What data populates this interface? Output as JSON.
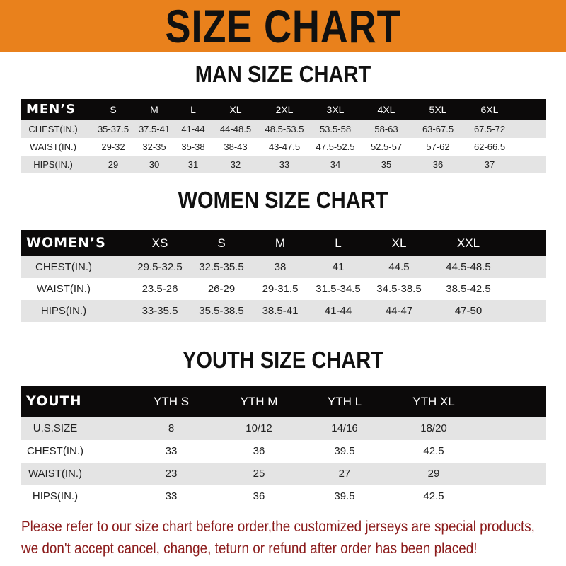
{
  "header": {
    "title": "SIZE CHART",
    "band_color": "#e9811c"
  },
  "men": {
    "title": "MAN SIZE CHART",
    "header_label": "MEN’S",
    "sizes": [
      "S",
      "M",
      "L",
      "XL",
      "2XL",
      "3XL",
      "4XL",
      "5XL",
      "6XL"
    ],
    "rows": [
      {
        "label": "CHEST(IN.)",
        "values": [
          "35-37.5",
          "37.5-41",
          "41-44",
          "44-48.5",
          "48.5-53.5",
          "53.5-58",
          "58-63",
          "63-67.5",
          "67.5-72"
        ]
      },
      {
        "label": "WAIST(IN.)",
        "values": [
          "29-32",
          "32-35",
          "35-38",
          "38-43",
          "43-47.5",
          "47.5-52.5",
          "52.5-57",
          "57-62",
          "62-66.5"
        ]
      },
      {
        "label": "HIPS(IN.)",
        "values": [
          "29",
          "30",
          "31",
          "32",
          "33",
          "34",
          "35",
          "36",
          "37"
        ]
      }
    ]
  },
  "women": {
    "title": "WOMEN SIZE CHART",
    "header_label": "WOMEN’S",
    "sizes": [
      "XS",
      "S",
      "M",
      "L",
      "XL",
      "XXL"
    ],
    "rows": [
      {
        "label": "CHEST(IN.)",
        "values": [
          "29.5-32.5",
          "32.5-35.5",
          "38",
          "41",
          "44.5",
          "44.5-48.5"
        ]
      },
      {
        "label": "WAIST(IN.)",
        "values": [
          "23.5-26",
          "26-29",
          "29-31.5",
          "31.5-34.5",
          "34.5-38.5",
          "38.5-42.5"
        ]
      },
      {
        "label": "HIPS(IN.)",
        "values": [
          "33-35.5",
          "35.5-38.5",
          "38.5-41",
          "41-44",
          "44-47",
          "47-50"
        ]
      }
    ]
  },
  "youth": {
    "title": "YOUTH SIZE CHART",
    "header_label": "YOUTH",
    "sizes": [
      "YTH S",
      "YTH M",
      "YTH L",
      "YTH XL"
    ],
    "rows": [
      {
        "label": "U.S.SIZE",
        "values": [
          "8",
          "10/12",
          "14/16",
          "18/20"
        ]
      },
      {
        "label": "CHEST(IN.)",
        "values": [
          "33",
          "36",
          "39.5",
          "42.5"
        ]
      },
      {
        "label": "WAIST(IN.)",
        "values": [
          "23",
          "25",
          "27",
          "29"
        ]
      },
      {
        "label": "HIPS(IN.)",
        "values": [
          "33",
          "36",
          "39.5",
          "42.5"
        ]
      }
    ]
  },
  "notice": {
    "line1": "Please refer to our size chart before order,the customized jerseys are special products,",
    "line2": "we don't accept cancel, change, teturn or refund after order has been placed!",
    "color": "#8c1c1c"
  }
}
